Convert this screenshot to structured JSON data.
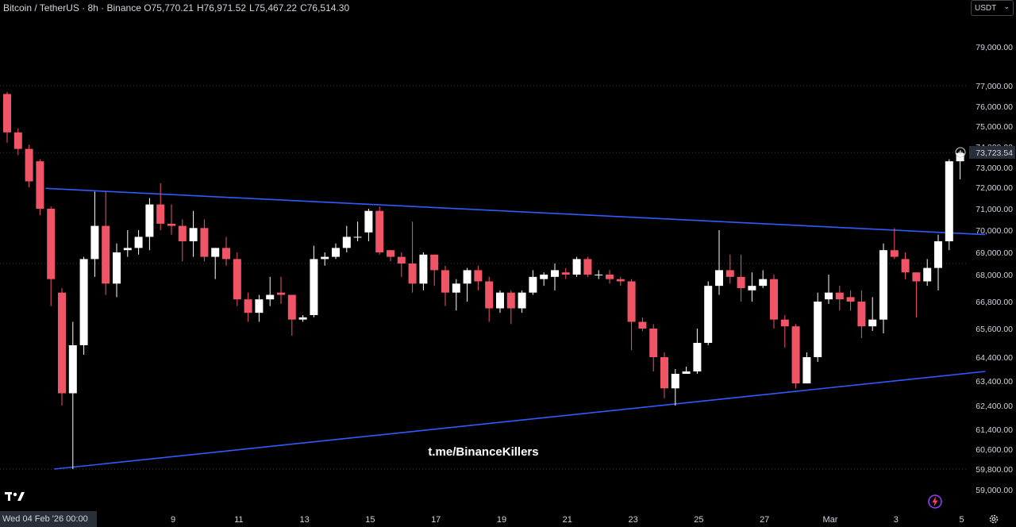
{
  "header": {
    "symbol": "Bitcoin / TetherUS · 8h · Binance",
    "open": "O75,770.21",
    "high": "H76,971.52",
    "low": "L75,467.22",
    "close": "C76,514.30"
  },
  "currency_label": "USDT",
  "crosshair_date": "Wed 04 Feb '26   00:00",
  "watermark": "t.me/BinanceKillers",
  "current_price_label": "73,723.54",
  "colors": {
    "up": "#ffffff",
    "down": "#f05467",
    "trendline": "#2f5bff",
    "grid": "#3a3d45",
    "axis_text": "#d1d4dc",
    "background": "#000000"
  },
  "chart_data": {
    "type": "candlestick",
    "title": "Bitcoin / TetherUS · 8h · Binance",
    "y_ticks": [
      {
        "price": 79000,
        "label": "79,000.00"
      },
      {
        "price": 77000,
        "label": "77,000.00"
      },
      {
        "price": 76000,
        "label": "76,000.00"
      },
      {
        "price": 75000,
        "label": "75,000.00"
      },
      {
        "price": 74000,
        "label": "74,000.00"
      },
      {
        "price": 73000,
        "label": "73,000.00"
      },
      {
        "price": 72000,
        "label": "72,000.00"
      },
      {
        "price": 71000,
        "label": "71,000.00"
      },
      {
        "price": 70000,
        "label": "70,000.00"
      },
      {
        "price": 69000,
        "label": "69,000.00"
      },
      {
        "price": 68000,
        "label": "68,000.00"
      },
      {
        "price": 66800,
        "label": "66,800.00"
      },
      {
        "price": 65600,
        "label": "65,600.00"
      },
      {
        "price": 64400,
        "label": "64,400.00"
      },
      {
        "price": 63400,
        "label": "63,400.00"
      },
      {
        "price": 62400,
        "label": "62,400.00"
      },
      {
        "price": 61400,
        "label": "61,400.00"
      },
      {
        "price": 60600,
        "label": "60,600.00"
      },
      {
        "price": 59800,
        "label": "59,800.00"
      },
      {
        "price": 59000,
        "label": "59,000.00"
      }
    ],
    "x_ticks": [
      {
        "index": 15,
        "label": "9"
      },
      {
        "index": 21,
        "label": "11"
      },
      {
        "index": 27,
        "label": "13"
      },
      {
        "index": 33,
        "label": "15"
      },
      {
        "index": 39,
        "label": "17"
      },
      {
        "index": 45,
        "label": "19"
      },
      {
        "index": 51,
        "label": "21"
      },
      {
        "index": 57,
        "label": "23"
      },
      {
        "index": 63,
        "label": "25"
      },
      {
        "index": 69,
        "label": "27"
      },
      {
        "index": 75,
        "label": "Mar"
      },
      {
        "index": 81,
        "label": "3"
      },
      {
        "index": 87,
        "label": "5"
      }
    ],
    "gridlines": [
      77000,
      73723.54,
      68500,
      59800
    ],
    "current_price": 73723.54,
    "trendlines": [
      {
        "from": {
          "index": 3.5,
          "price": 71950
        },
        "to": {
          "index": 89.3,
          "price": 69800
        }
      },
      {
        "from": {
          "index": 4.3,
          "price": 59800
        },
        "to": {
          "index": 89.3,
          "price": 63800
        }
      }
    ],
    "candles": [
      [
        76600,
        76700,
        74200,
        74700
      ],
      [
        74700,
        74900,
        73600,
        73900
      ],
      [
        73900,
        74100,
        72000,
        72300
      ],
      [
        73300,
        73400,
        70700,
        71000
      ],
      [
        71000,
        71100,
        66600,
        67800
      ],
      [
        67200,
        67400,
        62400,
        62900
      ],
      [
        62900,
        65900,
        59800,
        64900
      ],
      [
        64900,
        68800,
        64500,
        68700
      ],
      [
        68700,
        71800,
        67900,
        70200
      ],
      [
        70200,
        71800,
        67100,
        67600
      ],
      [
        67600,
        69400,
        67000,
        69000
      ],
      [
        69100,
        70000,
        68800,
        69200
      ],
      [
        69200,
        70000,
        68900,
        69700
      ],
      [
        69700,
        71500,
        69100,
        71200
      ],
      [
        71200,
        72200,
        70000,
        70300
      ],
      [
        70300,
        71200,
        69800,
        70200
      ],
      [
        70200,
        70500,
        68600,
        69500
      ],
      [
        69500,
        70900,
        68800,
        70100
      ],
      [
        70100,
        70500,
        68600,
        68800
      ],
      [
        68800,
        69200,
        67800,
        69200
      ],
      [
        69200,
        69700,
        68400,
        68700
      ],
      [
        68700,
        69000,
        66600,
        66900
      ],
      [
        66900,
        67200,
        65900,
        66300
      ],
      [
        66300,
        67100,
        65900,
        66900
      ],
      [
        66900,
        67900,
        66600,
        67100
      ],
      [
        67200,
        67900,
        66700,
        67100
      ],
      [
        67100,
        67100,
        65300,
        66000
      ],
      [
        66000,
        66200,
        65900,
        66100
      ],
      [
        66200,
        69300,
        66100,
        68700
      ],
      [
        68700,
        69000,
        68400,
        68800
      ],
      [
        68800,
        69400,
        68700,
        69200
      ],
      [
        69200,
        70200,
        69000,
        69700
      ],
      [
        69700,
        70400,
        69500,
        69700
      ],
      [
        69900,
        71000,
        69500,
        70900
      ],
      [
        70900,
        71100,
        68900,
        69000
      ],
      [
        69100,
        69100,
        68600,
        68800
      ],
      [
        68800,
        69000,
        67900,
        68500
      ],
      [
        68500,
        70400,
        67200,
        67600
      ],
      [
        67600,
        69000,
        67300,
        68900
      ],
      [
        68900,
        68900,
        67500,
        68200
      ],
      [
        68200,
        68400,
        66600,
        67200
      ],
      [
        67200,
        67800,
        66400,
        67600
      ],
      [
        67600,
        68300,
        66800,
        68200
      ],
      [
        68200,
        68400,
        67300,
        67700
      ],
      [
        67700,
        67900,
        65900,
        66500
      ],
      [
        66500,
        67300,
        66300,
        67200
      ],
      [
        67200,
        67300,
        65800,
        66500
      ],
      [
        66500,
        67300,
        66300,
        67200
      ],
      [
        67200,
        68200,
        67100,
        67900
      ],
      [
        67800,
        68100,
        67500,
        68000
      ],
      [
        67900,
        68500,
        67300,
        68200
      ],
      [
        68100,
        68300,
        67800,
        68000
      ],
      [
        68000,
        68800,
        67900,
        68700
      ],
      [
        68700,
        68800,
        67900,
        68000
      ],
      [
        68000,
        68200,
        67800,
        68000
      ],
      [
        68000,
        68200,
        67600,
        67800
      ],
      [
        67800,
        67900,
        67500,
        67700
      ],
      [
        67700,
        67800,
        64700,
        65900
      ],
      [
        65900,
        66100,
        65500,
        65600
      ],
      [
        65600,
        65800,
        63800,
        64400
      ],
      [
        64400,
        64600,
        62700,
        63100
      ],
      [
        63100,
        63900,
        62400,
        63700
      ],
      [
        63700,
        64000,
        63700,
        63800
      ],
      [
        63800,
        65600,
        63700,
        65000
      ],
      [
        65000,
        67700,
        64900,
        67500
      ],
      [
        67500,
        70000,
        67100,
        68200
      ],
      [
        68200,
        68900,
        67600,
        67900
      ],
      [
        67900,
        68900,
        66800,
        67400
      ],
      [
        67300,
        68100,
        66800,
        67500
      ],
      [
        67500,
        68200,
        67400,
        67800
      ],
      [
        67800,
        68000,
        65600,
        66000
      ],
      [
        66000,
        66200,
        64800,
        65700
      ],
      [
        65700,
        65800,
        63100,
        63300
      ],
      [
        63300,
        64600,
        63300,
        64400
      ],
      [
        64400,
        67200,
        64200,
        66800
      ],
      [
        66900,
        68000,
        66700,
        67200
      ],
      [
        67200,
        67500,
        66400,
        66900
      ],
      [
        67000,
        67300,
        66400,
        66800
      ],
      [
        66800,
        67300,
        65200,
        65700
      ],
      [
        65700,
        67000,
        65500,
        66000
      ],
      [
        66000,
        69400,
        65400,
        69100
      ],
      [
        69100,
        70100,
        68700,
        68800
      ],
      [
        68700,
        69000,
        67800,
        68100
      ],
      [
        68100,
        68100,
        66100,
        67700
      ],
      [
        67700,
        68700,
        67500,
        68300
      ],
      [
        68300,
        69800,
        67300,
        69500
      ],
      [
        69500,
        73400,
        69100,
        73300
      ],
      [
        73300,
        73800,
        72400,
        73700
      ]
    ]
  }
}
